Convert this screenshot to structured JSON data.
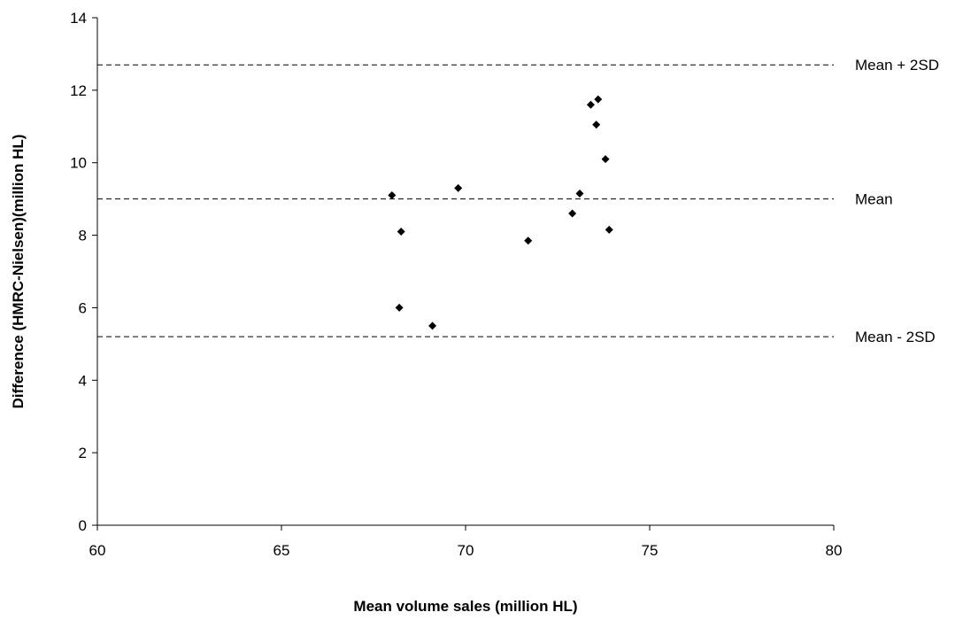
{
  "chart_data": {
    "type": "scatter",
    "title": "",
    "xlabel": "Mean volume sales (million HL)",
    "ylabel": "Difference (HMRC-Nielsen)(million HL)",
    "xlim": [
      60,
      80
    ],
    "ylim": [
      0,
      14
    ],
    "xticks": [
      60,
      65,
      70,
      75,
      80
    ],
    "yticks": [
      0,
      2,
      4,
      6,
      8,
      10,
      12,
      14
    ],
    "grid": false,
    "legend": "none",
    "marker": "diamond",
    "marker_color": "#000000",
    "points": [
      {
        "x": 68.0,
        "y": 9.1
      },
      {
        "x": 68.25,
        "y": 8.1
      },
      {
        "x": 68.2,
        "y": 6.0
      },
      {
        "x": 69.1,
        "y": 5.5
      },
      {
        "x": 69.8,
        "y": 9.3
      },
      {
        "x": 71.7,
        "y": 7.85
      },
      {
        "x": 72.9,
        "y": 8.6
      },
      {
        "x": 73.1,
        "y": 9.15
      },
      {
        "x": 73.4,
        "y": 11.6
      },
      {
        "x": 73.55,
        "y": 11.05
      },
      {
        "x": 73.6,
        "y": 11.75
      },
      {
        "x": 73.8,
        "y": 10.1
      },
      {
        "x": 73.9,
        "y": 8.15
      }
    ],
    "reference_lines": [
      {
        "label": "Mean + 2SD",
        "y": 12.7
      },
      {
        "label": "Mean",
        "y": 9.0
      },
      {
        "label": "Mean - 2SD",
        "y": 5.2
      }
    ]
  }
}
